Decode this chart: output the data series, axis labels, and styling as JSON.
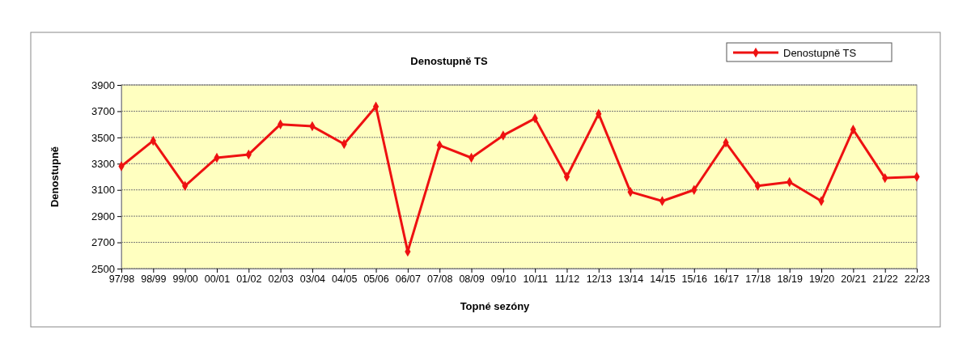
{
  "chart_data": {
    "type": "line",
    "title": "Denostupně  TS",
    "xlabel": "Topné sezóny",
    "ylabel": "Denostupně",
    "categories": [
      "97/98",
      "98/99",
      "99/00",
      "00/01",
      "01/02",
      "02/03",
      "03/04",
      "04/05",
      "05/06",
      "06/07",
      "07/08",
      "08/09",
      "09/10",
      "10/11",
      "11/12",
      "12/13",
      "13/14",
      "14/15",
      "15/16",
      "16/17",
      "17/18",
      "18/19",
      "19/20",
      "20/21",
      "21/22",
      "22/23"
    ],
    "series": [
      {
        "name": "Denostupně  TS",
        "color": "#ee1111",
        "values": [
          3280,
          3475,
          3130,
          3345,
          3370,
          3600,
          3585,
          3450,
          3735,
          2630,
          3440,
          3345,
          3515,
          3645,
          3200,
          3680,
          3085,
          3015,
          3100,
          3460,
          3130,
          3160,
          3015,
          3560,
          3190,
          3200
        ]
      }
    ],
    "ylim": [
      2500,
      3900
    ],
    "yticks": [
      2500,
      2700,
      2900,
      3100,
      3300,
      3500,
      3700,
      3900
    ],
    "grid": "y",
    "legend": "top right",
    "marker": "diamond",
    "line_style": "solid"
  }
}
